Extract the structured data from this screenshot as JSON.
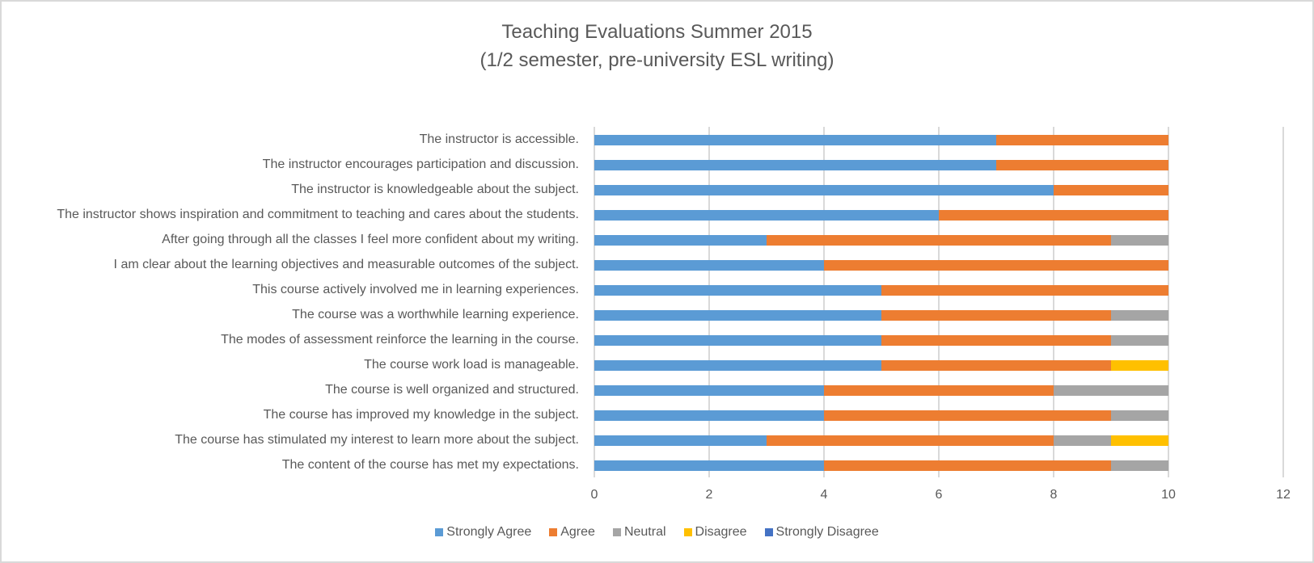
{
  "chart_data": {
    "type": "bar",
    "orientation": "horizontal",
    "stacked": true,
    "title": "Teaching Evaluations Summer 2015",
    "subtitle": "(1/2 semester, pre-university ESL writing)",
    "xlabel": "",
    "ylabel": "",
    "xlim": [
      0,
      12
    ],
    "xticks": [
      0,
      2,
      4,
      6,
      8,
      10,
      12
    ],
    "grid": true,
    "legend_position": "bottom",
    "categories": [
      "The instructor is accessible.",
      "The instructor encourages participation and discussion.",
      "The instructor is knowledgeable about the subject.",
      "The instructor shows inspiration and commitment to teaching and cares about the students.",
      "After going through all the classes I feel more confident about my writing.",
      "I am clear about the learning objectives and measurable outcomes of the subject.",
      "This course actively involved me in learning experiences.",
      "The course was a worthwhile learning experience.",
      "The modes of assessment reinforce the learning in the course.",
      "The course work load is manageable.",
      "The course is well organized and structured.",
      "The course has improved my knowledge in the subject.",
      "The course has stimulated my interest to learn more about the subject.",
      "The content of the course has met my expectations."
    ],
    "series": [
      {
        "name": "Strongly Agree",
        "color": "#5b9bd5",
        "values": [
          7,
          7,
          8,
          6,
          3,
          4,
          5,
          5,
          5,
          5,
          4,
          4,
          3,
          4
        ]
      },
      {
        "name": "Agree",
        "color": "#ed7d31",
        "values": [
          3,
          3,
          2,
          4,
          6,
          6,
          5,
          4,
          4,
          4,
          4,
          5,
          5,
          5
        ]
      },
      {
        "name": "Neutral",
        "color": "#a5a5a5",
        "values": [
          0,
          0,
          0,
          0,
          1,
          0,
          0,
          1,
          1,
          0,
          2,
          1,
          1,
          1
        ]
      },
      {
        "name": "Disagree",
        "color": "#ffc000",
        "values": [
          0,
          0,
          0,
          0,
          0,
          0,
          0,
          0,
          0,
          1,
          0,
          0,
          1,
          0
        ]
      },
      {
        "name": "Strongly Disagree",
        "color": "#4472c4",
        "values": [
          0,
          0,
          0,
          0,
          0,
          0,
          0,
          0,
          0,
          0,
          0,
          0,
          0,
          0
        ]
      }
    ]
  },
  "colors": {
    "text": "#595959",
    "grid": "#d9d9d9",
    "border": "#d9d9d9"
  }
}
